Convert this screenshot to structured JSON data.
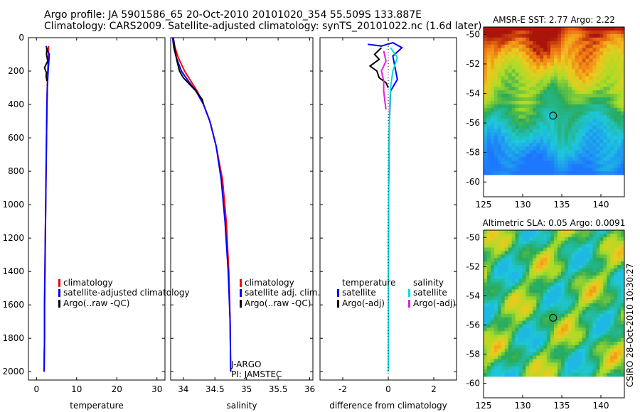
{
  "header": {
    "line1": "Argo profile: JA 5901586_65 20-Oct-2010 20101020_354 55.509S 133.887E",
    "line2": "Climatology: CARS2009. Satellite-adjusted climatology: synTS_20101022.nc (1.6d later)"
  },
  "side_label": "CSIRO 28-Oct-2010 10:30:27",
  "colors": {
    "red": "#ff0000",
    "blue": "#0000ff",
    "black": "#000000",
    "cyan": "#00e0e0",
    "magenta": "#e020e0"
  },
  "chart_data": [
    {
      "type": "line",
      "title": "",
      "xlabel": "temperature",
      "ylabel": "",
      "xlim": [
        -2,
        32
      ],
      "ylim": [
        2050,
        0
      ],
      "xticks": [
        "0",
        "10",
        "20",
        "30"
      ],
      "yticks": [
        "0",
        "200",
        "400",
        "600",
        "800",
        "1000",
        "1200",
        "1400",
        "1600",
        "1800",
        "2000"
      ],
      "legend": [
        "climatology",
        "satellite-adjusted climatology",
        "Argo(..raw -QC)"
      ],
      "series": [
        {
          "name": "climatology",
          "color": "red",
          "x": [
            3.0,
            3.0,
            2.8,
            2.7,
            2.6,
            2.5,
            2.4,
            2.3,
            2.2,
            2.1,
            2.0,
            2.0,
            1.9
          ],
          "y": [
            50,
            100,
            200,
            300,
            400,
            600,
            800,
            1000,
            1200,
            1400,
            1600,
            1800,
            2000
          ]
        },
        {
          "name": "satellite-adjusted climatology",
          "color": "blue",
          "x": [
            2.4,
            2.6,
            3.2,
            2.9,
            2.7,
            2.6,
            2.5,
            2.4,
            2.3,
            2.2,
            2.1,
            2.0,
            2.0,
            1.9
          ],
          "y": [
            50,
            70,
            100,
            200,
            300,
            400,
            600,
            800,
            1000,
            1200,
            1400,
            1600,
            1800,
            2000
          ]
        },
        {
          "name": "Argo(..raw -QC)",
          "color": "black",
          "x": [
            2.6,
            2.5,
            2.8,
            2.0,
            2.3,
            2.5,
            2.4,
            2.6
          ],
          "y": [
            60,
            100,
            140,
            180,
            200,
            210,
            230,
            260
          ]
        }
      ]
    },
    {
      "type": "line",
      "title": "",
      "xlabel": "salinity",
      "ylabel": "",
      "xlim": [
        33.8,
        36.05
      ],
      "ylim": [
        2050,
        0
      ],
      "xticks": [
        "34",
        "34.5",
        "35",
        "35.5",
        "36"
      ],
      "yticks": [],
      "legend": [
        "climatology",
        "satellite adj. clim.",
        "Argo(..raw -QC)"
      ],
      "annotations": [
        "J-ARGO",
        "PI: JAMSTEC"
      ],
      "series": [
        {
          "name": "climatology",
          "color": "red",
          "x": [
            33.84,
            33.87,
            33.92,
            34.02,
            34.12,
            34.22,
            34.32,
            34.42,
            34.52,
            34.62,
            34.68,
            34.72,
            34.74,
            34.75
          ],
          "y": [
            0,
            60,
            120,
            200,
            260,
            320,
            400,
            500,
            650,
            850,
            1100,
            1400,
            1700,
            2000
          ]
        },
        {
          "name": "satellite adj. clim.",
          "color": "blue",
          "x": [
            33.83,
            33.85,
            33.89,
            33.97,
            34.08,
            34.2,
            34.32,
            34.42,
            34.52,
            34.6,
            34.66,
            34.71,
            34.74,
            34.75
          ],
          "y": [
            0,
            60,
            120,
            200,
            260,
            320,
            400,
            500,
            650,
            850,
            1100,
            1400,
            1700,
            2000
          ]
        },
        {
          "name": "Argo(..raw -QC)",
          "color": "black",
          "x": [
            33.84,
            33.87,
            33.9,
            33.94,
            34.0,
            34.1,
            34.2,
            34.3,
            34.32
          ],
          "y": [
            0,
            80,
            140,
            200,
            240,
            280,
            320,
            370,
            400
          ]
        }
      ]
    },
    {
      "type": "line",
      "title": "",
      "xlabel": "difference from climatology",
      "ylabel": "",
      "xlim": [
        -3.0,
        3.0
      ],
      "ylim": [
        2050,
        0
      ],
      "xticks": [
        "-2",
        "0",
        "2"
      ],
      "yticks": [],
      "legend": [
        "temperature",
        "satellite",
        "Argo(-adj)",
        "salinity",
        "satellite",
        "Argo(-adj)"
      ],
      "series": [
        {
          "name": "temperature satellite",
          "color": "blue",
          "x": [
            -0.9,
            -0.3,
            0.2,
            0.6,
            0.2,
            0.3,
            0.4,
            0.1,
            0.05,
            0.02,
            0.0,
            0.0
          ],
          "y": [
            40,
            50,
            30,
            60,
            110,
            180,
            250,
            320,
            500,
            900,
            1500,
            2000
          ]
        },
        {
          "name": "temperature Argo(-adj)",
          "color": "black",
          "x": [
            -0.3,
            -0.6,
            -0.4,
            -0.8,
            -0.5,
            -0.4,
            -0.1,
            0.0
          ],
          "y": [
            60,
            100,
            130,
            170,
            200,
            240,
            270,
            300
          ]
        },
        {
          "name": "salinity satellite",
          "color": "cyan",
          "x": [
            0.1,
            0.4,
            0.2,
            0.1,
            0.05,
            0.02,
            0.0,
            0.0
          ],
          "y": [
            60,
            120,
            200,
            300,
            450,
            800,
            1400,
            2000
          ]
        },
        {
          "name": "salinity Argo(-adj)",
          "color": "magenta",
          "x": [
            -0.2,
            -0.1,
            -0.3,
            -0.2,
            -0.2,
            -0.15,
            -0.1
          ],
          "y": [
            80,
            140,
            200,
            260,
            320,
            380,
            430
          ]
        }
      ]
    },
    {
      "type": "heatmap",
      "title": "AMSR-E SST: 2.77 Argo: 2.22",
      "xlim": [
        125,
        143
      ],
      "ylim": [
        -61,
        -49.5
      ],
      "xticks": [
        "125",
        "130",
        "135",
        "140"
      ],
      "yticks": [
        "-50",
        "-52",
        "-54",
        "-56",
        "-58",
        "-60"
      ],
      "marker": {
        "lon": 133.887,
        "lat": -55.509
      }
    },
    {
      "type": "heatmap",
      "title": "Altimetric SLA: 0.05 Argo: 0.0091",
      "xlim": [
        125,
        143
      ],
      "ylim": [
        -61,
        -49.5
      ],
      "xticks": [
        "125",
        "130",
        "135",
        "140"
      ],
      "yticks": [
        "-50",
        "-52",
        "-54",
        "-56",
        "-58",
        "-60"
      ],
      "marker": {
        "lon": 133.887,
        "lat": -55.509
      }
    }
  ]
}
